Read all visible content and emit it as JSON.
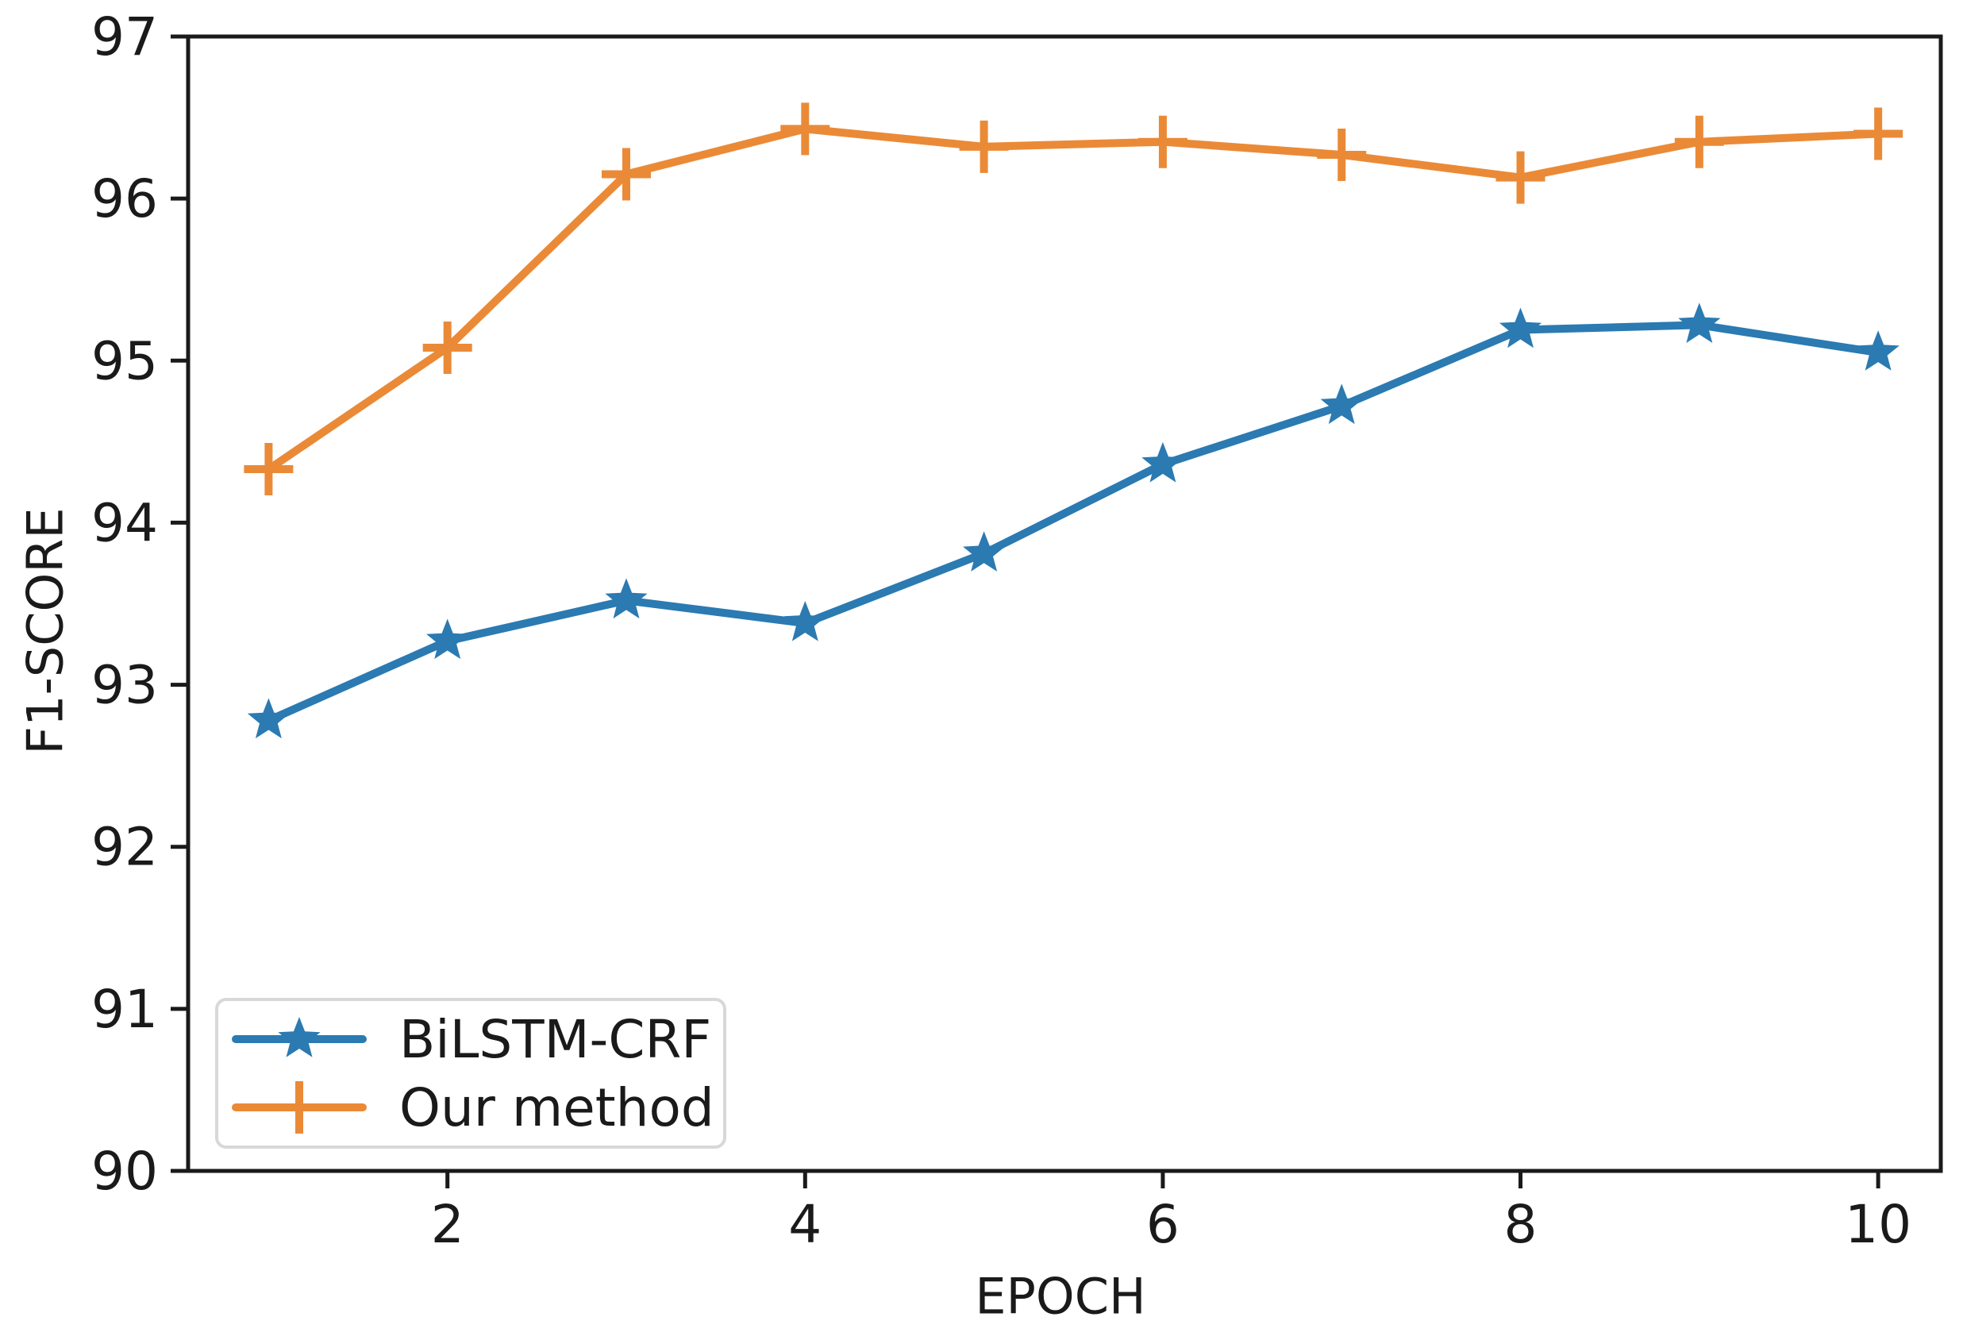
{
  "figure": {
    "background": "#ffffff",
    "frame_color": "#1a1a1a",
    "legend_border_color": "#d8d8d8"
  },
  "chart_data": {
    "type": "line",
    "title": "",
    "xlabel": "EPOCH",
    "ylabel": "F1-SCORE",
    "x": [
      1,
      2,
      3,
      4,
      5,
      6,
      7,
      8,
      9,
      10
    ],
    "series": [
      {
        "name": "BiLSTM-CRF",
        "color": "#2b7ab2",
        "marker": "star",
        "values": [
          92.78,
          93.27,
          93.52,
          93.38,
          93.81,
          94.36,
          94.72,
          95.19,
          95.22,
          95.05
        ]
      },
      {
        "name": "Our method",
        "color": "#ea8a37",
        "marker": "plus",
        "values": [
          94.33,
          95.08,
          96.15,
          96.43,
          96.32,
          96.35,
          96.27,
          96.13,
          96.35,
          96.4
        ]
      }
    ],
    "xlim": [
      0.55,
      10.35
    ],
    "ylim": [
      90,
      97
    ],
    "xticks": [
      2,
      4,
      6,
      8,
      10
    ],
    "yticks": [
      90,
      91,
      92,
      93,
      94,
      95,
      96,
      97
    ],
    "grid": false,
    "legend_position": "lower-left",
    "axis_color": "#1a1a1a"
  }
}
